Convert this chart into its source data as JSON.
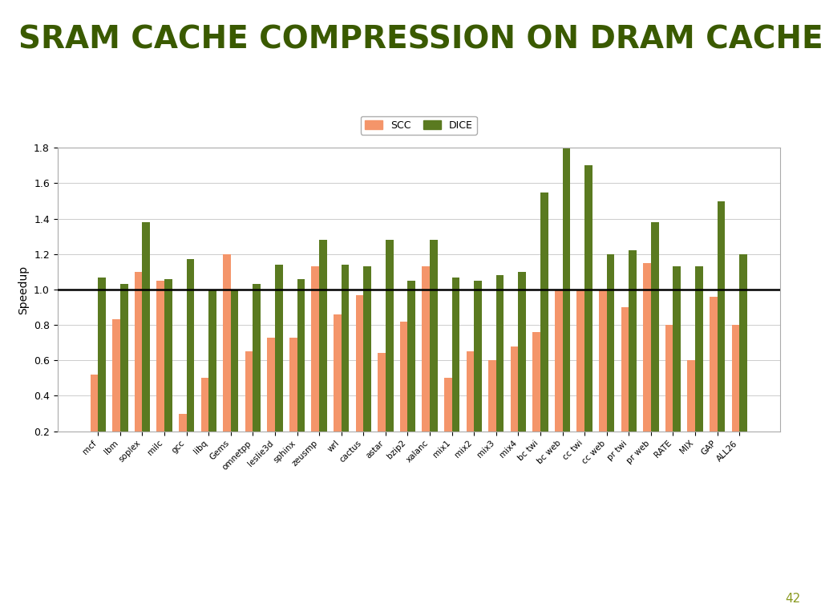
{
  "title": "SRAM CACHE COMPRESSION ON DRAM CACHE",
  "title_bg_color": "#c8d08a",
  "title_text_color": "#3a5a00",
  "ylabel": "Speedup",
  "ylim": [
    0.2,
    1.8
  ],
  "yticks": [
    0.2,
    0.4,
    0.6,
    0.8,
    1.0,
    1.2,
    1.4,
    1.6,
    1.8
  ],
  "bar_width": 0.35,
  "scc_color": "#f4956a",
  "dice_color": "#5a7a20",
  "legend_labels": [
    "SCC",
    "DICE"
  ],
  "page_number": "42",
  "categories": [
    "mcf",
    "lbm",
    "soplex",
    "milc",
    "gcc",
    "libq",
    "Gems",
    "omnetpp",
    "leslie3d",
    "sphinx",
    "zeusmp",
    "wrl",
    "cactus",
    "astar",
    "bzip2",
    "xalanc",
    "mix1",
    "mix2",
    "mix3",
    "mix4",
    "bc twi",
    "bc web",
    "cc twi",
    "cc web",
    "pr twi",
    "pr web",
    "RATE",
    "MIX",
    "GAP",
    "ALL26"
  ],
  "scc_values": [
    0.52,
    0.83,
    1.1,
    1.05,
    0.3,
    0.5,
    1.2,
    0.65,
    0.73,
    0.73,
    1.13,
    0.86,
    0.97,
    0.64,
    0.82,
    1.13,
    0.5,
    0.65,
    0.6,
    0.68,
    0.76,
    1.0,
    1.0,
    1.0,
    0.9,
    1.15,
    0.8,
    0.6,
    0.96,
    0.8
  ],
  "dice_values": [
    1.07,
    1.03,
    1.38,
    1.06,
    1.17,
    1.0,
    1.0,
    1.03,
    1.14,
    1.06,
    1.28,
    1.14,
    1.13,
    1.28,
    1.05,
    1.28,
    1.07,
    1.05,
    1.08,
    1.1,
    1.55,
    1.8,
    1.7,
    1.2,
    1.22,
    1.38,
    1.13,
    1.13,
    1.5,
    1.2
  ],
  "background_color": "#ffffff",
  "page_num_color": "#8a9a20"
}
